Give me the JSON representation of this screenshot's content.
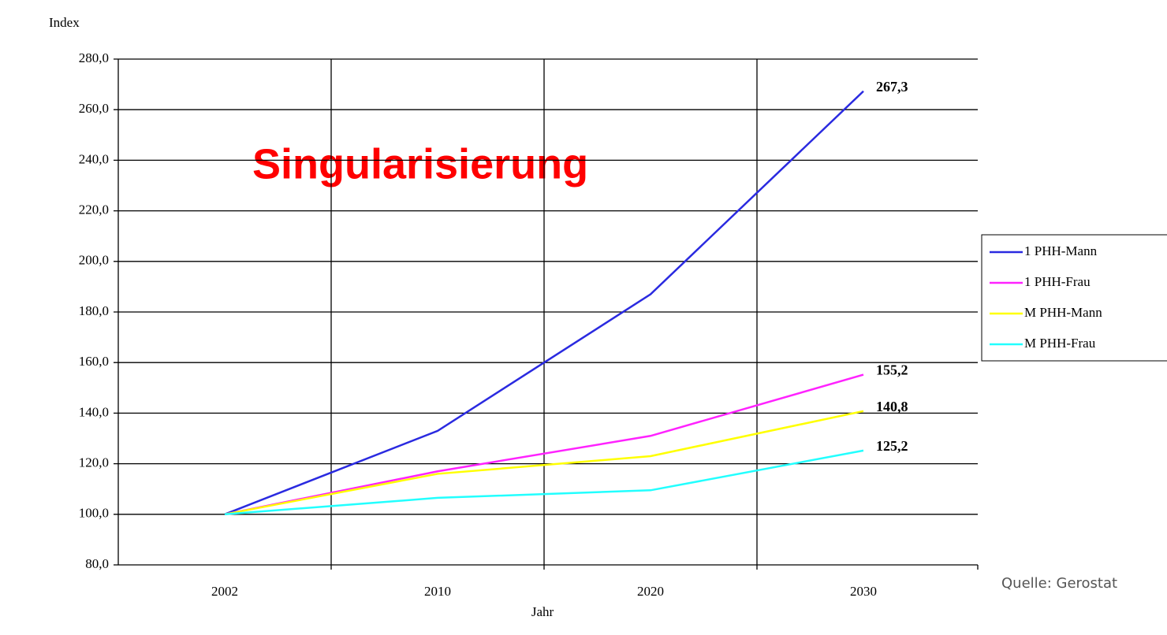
{
  "chart_data": {
    "type": "line",
    "title": "Singularisierung",
    "y_label": "Index",
    "x_label": "Jahr",
    "source": "Quelle: Gerostat",
    "categories": [
      "2002",
      "2010",
      "2020",
      "2030"
    ],
    "series": [
      {
        "name": "1 PHH-Mann",
        "color": "#2a2ae0",
        "values": [
          100,
          133,
          187,
          267.3
        ],
        "value_labels": [
          null,
          null,
          null,
          "267,3"
        ]
      },
      {
        "name": "1 PHH-Frau",
        "color": "#ff22ff",
        "values": [
          100,
          117,
          131,
          155.2
        ],
        "value_labels": [
          null,
          null,
          null,
          "155,2"
        ]
      },
      {
        "name": "M PHH-Mann",
        "color": "#ffff00",
        "values": [
          100,
          116,
          123,
          140.8
        ],
        "value_labels": [
          null,
          null,
          null,
          "140,8"
        ]
      },
      {
        "name": "M PHH-Frau",
        "color": "#22ffff",
        "values": [
          100,
          106.5,
          109.5,
          125.2
        ],
        "value_labels": [
          null,
          null,
          null,
          "125,2"
        ]
      }
    ],
    "ylim": [
      80,
      280
    ],
    "yticks": [
      {
        "value": 80,
        "label": "80,0"
      },
      {
        "value": 100,
        "label": "100,0"
      },
      {
        "value": 120,
        "label": "120,0"
      },
      {
        "value": 140,
        "label": "140,0"
      },
      {
        "value": 160,
        "label": "160,0"
      },
      {
        "value": 180,
        "label": "180,0"
      },
      {
        "value": 200,
        "label": "200,0"
      },
      {
        "value": 220,
        "label": "220,0"
      },
      {
        "value": 240,
        "label": "240,0"
      },
      {
        "value": 260,
        "label": "260,0"
      },
      {
        "value": 280,
        "label": "280,0"
      }
    ],
    "grid": true,
    "legend": "right"
  }
}
